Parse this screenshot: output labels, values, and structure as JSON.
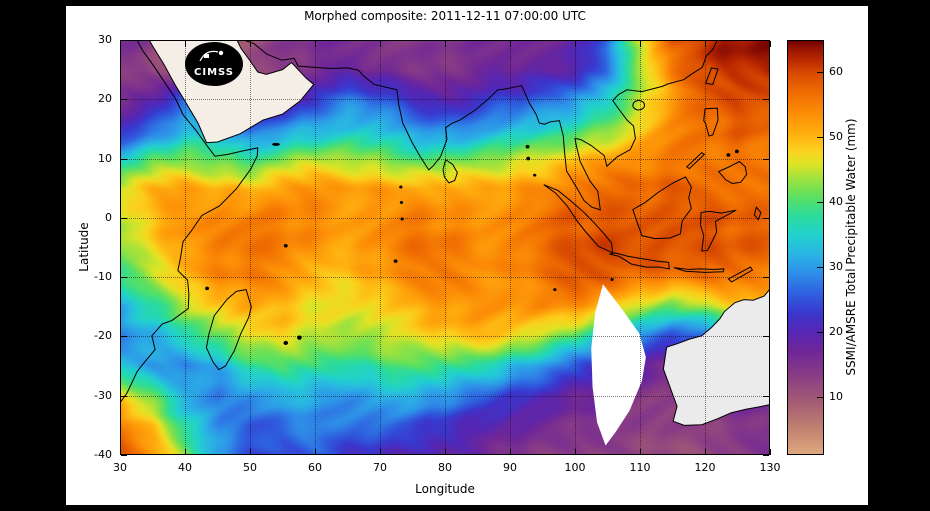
{
  "figure": {
    "title": "Morphed composite: 2011-12-11 07:00:00 UTC",
    "xlabel": "Longitude",
    "ylabel": "Latitude",
    "colorbar_label": "SSMI/AMSRE Total Precipitable Water (mm)",
    "logo_text": "CIMSS"
  },
  "colors": {
    "page_bg": "#000000",
    "panel_bg": "#ffffff",
    "land_arabia": "#f4eee7",
    "land_australia": "#ebebeb",
    "missing_swath": "#ffffff"
  },
  "chart_data": {
    "type": "heatmap",
    "title": "Morphed composite: 2011-12-11 07:00:00 UTC",
    "xlabel": "Longitude",
    "ylabel": "Latitude",
    "colorbar_label": "SSMI/AMSRE Total Precipitable Water (mm)",
    "xlim": [
      30,
      130
    ],
    "ylim": [
      -40,
      30
    ],
    "grid": true,
    "x_ticks": [
      30,
      40,
      50,
      60,
      70,
      80,
      90,
      100,
      110,
      120,
      130
    ],
    "y_ticks": [
      30,
      20,
      10,
      0,
      -10,
      -20,
      -30,
      -40
    ],
    "colorbar_ticks": [
      10,
      20,
      30,
      40,
      50,
      60
    ],
    "vmin": 1,
    "vmax": 65,
    "lon": [
      30,
      35,
      40,
      45,
      50,
      55,
      60,
      65,
      70,
      75,
      80,
      85,
      90,
      95,
      100,
      105,
      110,
      115,
      120,
      125,
      130
    ],
    "lat": [
      30,
      25,
      20,
      15,
      10,
      5,
      0,
      -5,
      -10,
      -15,
      -20,
      -25,
      -30,
      -35,
      -40
    ],
    "values": [
      [
        15,
        13,
        9,
        9,
        11,
        13,
        15,
        16,
        15,
        14,
        14,
        15,
        16,
        17,
        18,
        26,
        45,
        58,
        62,
        64,
        64
      ],
      [
        14,
        12,
        10,
        10,
        12,
        14,
        16,
        17,
        16,
        15,
        15,
        16,
        17,
        18,
        20,
        28,
        42,
        55,
        60,
        62,
        63
      ],
      [
        16,
        20,
        27,
        23,
        16,
        18,
        24,
        28,
        26,
        22,
        20,
        22,
        24,
        26,
        30,
        36,
        44,
        52,
        58,
        60,
        60
      ],
      [
        22,
        26,
        33,
        31,
        26,
        30,
        32,
        33,
        32,
        30,
        28,
        30,
        32,
        34,
        38,
        42,
        48,
        54,
        56,
        58,
        58
      ],
      [
        34,
        40,
        42,
        40,
        38,
        42,
        44,
        44,
        42,
        40,
        40,
        42,
        44,
        46,
        50,
        52,
        54,
        55,
        56,
        56,
        55
      ],
      [
        46,
        50,
        52,
        50,
        50,
        52,
        53,
        52,
        52,
        52,
        51,
        51,
        52,
        54,
        56,
        57,
        57,
        58,
        58,
        57,
        56
      ],
      [
        44,
        50,
        54,
        55,
        55,
        55,
        54,
        53,
        54,
        55,
        54,
        53,
        55,
        57,
        58,
        58,
        59,
        60,
        59,
        58,
        57
      ],
      [
        42,
        48,
        53,
        55,
        56,
        55,
        53,
        52,
        54,
        56,
        56,
        54,
        55,
        57,
        59,
        60,
        60,
        60,
        59,
        58,
        58
      ],
      [
        38,
        45,
        51,
        54,
        55,
        53,
        50,
        49,
        52,
        54,
        55,
        54,
        53,
        56,
        58,
        58,
        57,
        56,
        56,
        55,
        54
      ],
      [
        32,
        38,
        44,
        49,
        52,
        50,
        47,
        46,
        48,
        51,
        53,
        53,
        52,
        54,
        54,
        50,
        44,
        40,
        44,
        48,
        50
      ],
      [
        28,
        32,
        36,
        42,
        47,
        48,
        45,
        43,
        45,
        47,
        49,
        50,
        48,
        45,
        40,
        34,
        28,
        24,
        26,
        30,
        34
      ],
      [
        34,
        30,
        28,
        32,
        38,
        41,
        39,
        37,
        39,
        41,
        40,
        38,
        34,
        30,
        26,
        22,
        18,
        16,
        17,
        20,
        24
      ],
      [
        48,
        40,
        31,
        27,
        29,
        33,
        31,
        29,
        31,
        33,
        30,
        27,
        23,
        20,
        18,
        16,
        14,
        13,
        14,
        15,
        17
      ],
      [
        56,
        48,
        36,
        28,
        25,
        27,
        29,
        27,
        26,
        25,
        22,
        20,
        18,
        16,
        15,
        14,
        13,
        12,
        13,
        14,
        15
      ],
      [
        58,
        52,
        42,
        31,
        25,
        23,
        25,
        23,
        22,
        20,
        18,
        17,
        15,
        14,
        13,
        12,
        12,
        11,
        12,
        13,
        14
      ]
    ],
    "colormap": [
      {
        "v": 0,
        "c": "#dfa87e"
      },
      {
        "v": 5,
        "c": "#c08070"
      },
      {
        "v": 9,
        "c": "#a45c74"
      },
      {
        "v": 13,
        "c": "#8a3d85"
      },
      {
        "v": 17,
        "c": "#6e2699"
      },
      {
        "v": 20,
        "c": "#5526b4"
      },
      {
        "v": 23,
        "c": "#3939cf"
      },
      {
        "v": 26,
        "c": "#2e62e0"
      },
      {
        "v": 29,
        "c": "#2e8fe8"
      },
      {
        "v": 32,
        "c": "#2ab4e4"
      },
      {
        "v": 35,
        "c": "#22d2cd"
      },
      {
        "v": 38,
        "c": "#2cdc9a"
      },
      {
        "v": 41,
        "c": "#5fe05e"
      },
      {
        "v": 44,
        "c": "#a8e23a"
      },
      {
        "v": 46,
        "c": "#e0e426"
      },
      {
        "v": 48,
        "c": "#fbd21d"
      },
      {
        "v": 51,
        "c": "#ffab0e"
      },
      {
        "v": 54,
        "c": "#fc8b06"
      },
      {
        "v": 57,
        "c": "#ef6c02"
      },
      {
        "v": 60,
        "c": "#d94a01"
      },
      {
        "v": 62,
        "c": "#bc2a00"
      },
      {
        "v": 64,
        "c": "#931104"
      },
      {
        "v": 66,
        "c": "#6e0000"
      }
    ],
    "legend_position": "right-colorbar"
  }
}
